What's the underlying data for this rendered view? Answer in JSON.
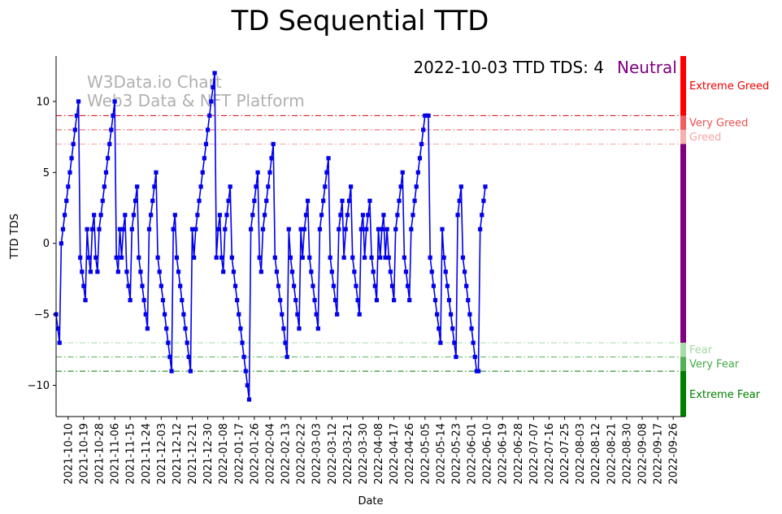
{
  "chart_data": {
    "type": "line",
    "title": "TD Sequential TTD",
    "xlabel": "Date",
    "ylabel": "TTD TDS",
    "ylim": [
      -12.2,
      13.2
    ],
    "xlim": [
      "2021-10-03",
      "2022-10-03"
    ],
    "yticks": [
      -10,
      -5,
      0,
      5,
      10
    ],
    "xticks": [
      "2021-10-10",
      "2021-10-19",
      "2021-10-28",
      "2021-11-06",
      "2021-11-15",
      "2021-11-24",
      "2021-12-03",
      "2021-12-12",
      "2021-12-21",
      "2021-12-30",
      "2022-01-08",
      "2022-01-17",
      "2022-01-26",
      "2022-02-04",
      "2022-02-13",
      "2022-02-22",
      "2022-03-03",
      "2022-03-12",
      "2022-03-21",
      "2022-03-30",
      "2022-04-08",
      "2022-04-17",
      "2022-04-26",
      "2022-05-05",
      "2022-05-14",
      "2022-05-23",
      "2022-06-01",
      "2022-06-10",
      "2022-06-19",
      "2022-06-28",
      "2022-07-07",
      "2022-07-16",
      "2022-07-25",
      "2022-08-03",
      "2022-08-12",
      "2022-08-21",
      "2022-08-30",
      "2022-09-08",
      "2022-09-17",
      "2022-09-26"
    ],
    "series": [
      {
        "color": "#0000ee",
        "marker": "square",
        "start_date": "2021-10-03",
        "values": [
          -5,
          -6,
          -7,
          0,
          1,
          2,
          3,
          4,
          5,
          6,
          7,
          8,
          9,
          10,
          -1,
          -2,
          -3,
          -4,
          1,
          -1,
          -2,
          1,
          2,
          -1,
          -2,
          1,
          2,
          3,
          4,
          5,
          6,
          7,
          8,
          9,
          10,
          -1,
          -2,
          1,
          -1,
          1,
          2,
          -2,
          -3,
          -4,
          1,
          2,
          3,
          4,
          -1,
          -2,
          -3,
          -4,
          -5,
          -6,
          1,
          2,
          3,
          4,
          5,
          -1,
          -2,
          -3,
          -4,
          -5,
          -6,
          -7,
          -8,
          -9,
          1,
          2,
          -1,
          -2,
          -3,
          -4,
          -5,
          -6,
          -7,
          -8,
          -9,
          1,
          -1,
          1,
          2,
          3,
          4,
          5,
          6,
          7,
          8,
          9,
          10,
          11,
          12,
          -1,
          1,
          2,
          -1,
          -2,
          1,
          2,
          3,
          4,
          -1,
          -2,
          -3,
          -4,
          -5,
          -6,
          -7,
          -8,
          -9,
          -10,
          -11,
          1,
          2,
          3,
          4,
          5,
          -1,
          -2,
          1,
          2,
          3,
          4,
          5,
          6,
          7,
          -1,
          -2,
          -3,
          -4,
          -5,
          -6,
          -7,
          -8,
          1,
          -1,
          -2,
          -3,
          -4,
          -5,
          -6,
          1,
          -1,
          1,
          2,
          3,
          -1,
          -2,
          -3,
          -4,
          -5,
          -6,
          1,
          2,
          3,
          4,
          5,
          6,
          -1,
          -2,
          -3,
          -4,
          -5,
          1,
          2,
          3,
          -1,
          1,
          2,
          3,
          4,
          -1,
          -2,
          -3,
          -4,
          -5,
          1,
          2,
          -1,
          1,
          2,
          3,
          -1,
          -2,
          -3,
          -4,
          1,
          -1,
          1,
          2,
          -1,
          1,
          -1,
          -2,
          -3,
          -4,
          1,
          2,
          3,
          4,
          5,
          -1,
          -2,
          -3,
          -4,
          1,
          2,
          3,
          4,
          5,
          6,
          7,
          8,
          9,
          9,
          9,
          -1,
          -2,
          -3,
          -4,
          -5,
          -6,
          -7,
          1,
          -1,
          -2,
          -3,
          -4,
          -5,
          -6,
          -7,
          -8,
          2,
          3,
          4,
          -1,
          -2,
          -3,
          -4,
          -5,
          -6,
          -7,
          -8,
          -9,
          -9,
          1,
          2,
          3,
          4
        ]
      }
    ],
    "thresholds": [
      {
        "value": 9,
        "color": "#dd0000"
      },
      {
        "value": 8,
        "color": "#ee5555"
      },
      {
        "value": 7,
        "color": "#f4a0a0"
      },
      {
        "value": -7,
        "color": "#a8dca8"
      },
      {
        "value": -8,
        "color": "#55b055"
      },
      {
        "value": -9,
        "color": "#007a00"
      }
    ],
    "zones": [
      {
        "label": "Extreme Greed",
        "from": 9,
        "to": 13.2,
        "bar_color": "#ff0000",
        "text_color": "#ee0000"
      },
      {
        "label": "Very Greed",
        "from": 8,
        "to": 9,
        "bar_color": "#f06060",
        "text_color": "#f05050"
      },
      {
        "label": "Greed",
        "from": 7,
        "to": 8,
        "bar_color": "#f7b0b0",
        "text_color": "#f5a5a5"
      },
      {
        "label": "",
        "from": -7,
        "to": 7,
        "bar_color": "#800080",
        "text_color": "#800080"
      },
      {
        "label": "Fear",
        "from": -8,
        "to": -7,
        "bar_color": "#a8dca8",
        "text_color": "#a0d8a0"
      },
      {
        "label": "Very Fear",
        "from": -9,
        "to": -8,
        "bar_color": "#55b055",
        "text_color": "#44aa44"
      },
      {
        "label": "Extreme Fear",
        "from": -12.2,
        "to": -9,
        "bar_color": "#008000",
        "text_color": "#008000"
      }
    ],
    "watermark": [
      "W3Data.io Chart",
      "Web3 Data & NFT Platform"
    ],
    "status": {
      "text": "2022-10-03 TTD TDS: 4",
      "sentiment": "Neutral",
      "sentiment_color": "#800080"
    }
  }
}
